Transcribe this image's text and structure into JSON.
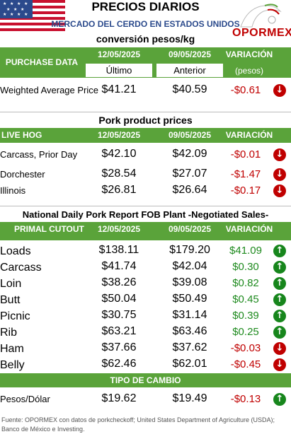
{
  "header": {
    "title": "PRECIOS DIARIOS",
    "subtitle": "MERCADO DEL CERDO EN ESTADOS UNIDOS",
    "conversion": "conversión pesos/kg",
    "logo_text": "OPORMEX"
  },
  "purchase": {
    "label": "PURCHASE DATA",
    "date1": "12/05/2025",
    "date2": "09/05/2025",
    "var_label": "VARIACIÓN",
    "var_sub": "(pesos)",
    "col1_sub": "Último",
    "col2_sub": "Anterior",
    "rows": [
      {
        "name": "Weighted Average Price",
        "v1": "$41.21",
        "v2": "$40.59",
        "var": "-$0.61",
        "dir": "down"
      }
    ]
  },
  "pork": {
    "section_title": "Pork product prices",
    "label": "LIVE HOG",
    "date1": "12/05/2025",
    "date2": "09/05/2025",
    "var_label": "VARIACIÓN",
    "rows": [
      {
        "name": "Carcass, Prior Day",
        "v1": "$42.10",
        "v2": "$42.09",
        "var": "-$0.01",
        "dir": "down"
      },
      {
        "name": "Dorchester",
        "v1": "$28.54",
        "v2": "$27.07",
        "var": "-$1.47",
        "dir": "down"
      },
      {
        "name": "Illinois",
        "v1": "$26.81",
        "v2": "$26.64",
        "var": "-$0.17",
        "dir": "down"
      }
    ]
  },
  "primal": {
    "section_title": "National Daily Pork Report FOB Plant -Negotiated Sales-",
    "label": "PRIMAL CUTOUT",
    "date1": "12/05/2025",
    "date2": "09/05/2025",
    "var_label": "VARIACIÓN",
    "rows": [
      {
        "name": "Loads",
        "v1": "$138.11",
        "v2": "$179.20",
        "var": "$41.09",
        "dir": "up"
      },
      {
        "name": "Carcass",
        "v1": "$41.74",
        "v2": "$42.04",
        "var": "$0.30",
        "dir": "up"
      },
      {
        "name": "Loin",
        "v1": "$38.26",
        "v2": "$39.08",
        "var": "$0.82",
        "dir": "up"
      },
      {
        "name": "Butt",
        "v1": "$50.04",
        "v2": "$50.49",
        "var": "$0.45",
        "dir": "up"
      },
      {
        "name": "Picnic",
        "v1": "$30.75",
        "v2": "$31.14",
        "var": "$0.39",
        "dir": "up"
      },
      {
        "name": "Rib",
        "v1": "$63.21",
        "v2": "$63.46",
        "var": "$0.25",
        "dir": "up"
      },
      {
        "name": "Ham",
        "v1": "$37.66",
        "v2": "$37.62",
        "var": "-$0.03",
        "dir": "down"
      },
      {
        "name": "Belly",
        "v1": "$62.46",
        "v2": "$62.01",
        "var": "-$0.45",
        "dir": "down"
      }
    ]
  },
  "cambio": {
    "label": "TIPO DE CAMBIO",
    "rows": [
      {
        "name": "Pesos/Dólar",
        "v1": "$19.62",
        "v2": "$19.49",
        "var": "-$0.13",
        "dir": "up"
      }
    ]
  },
  "footer": {
    "source": "Fuente: OPORMEX con datos de porkcheckoff; United States Department of Agriculture (USDA); Banco de México e Investing."
  },
  "colors": {
    "header_green": "#5aa33a",
    "negative": "#c00000",
    "positive": "#1e8a1e",
    "title_blue": "#2b4a8c"
  }
}
